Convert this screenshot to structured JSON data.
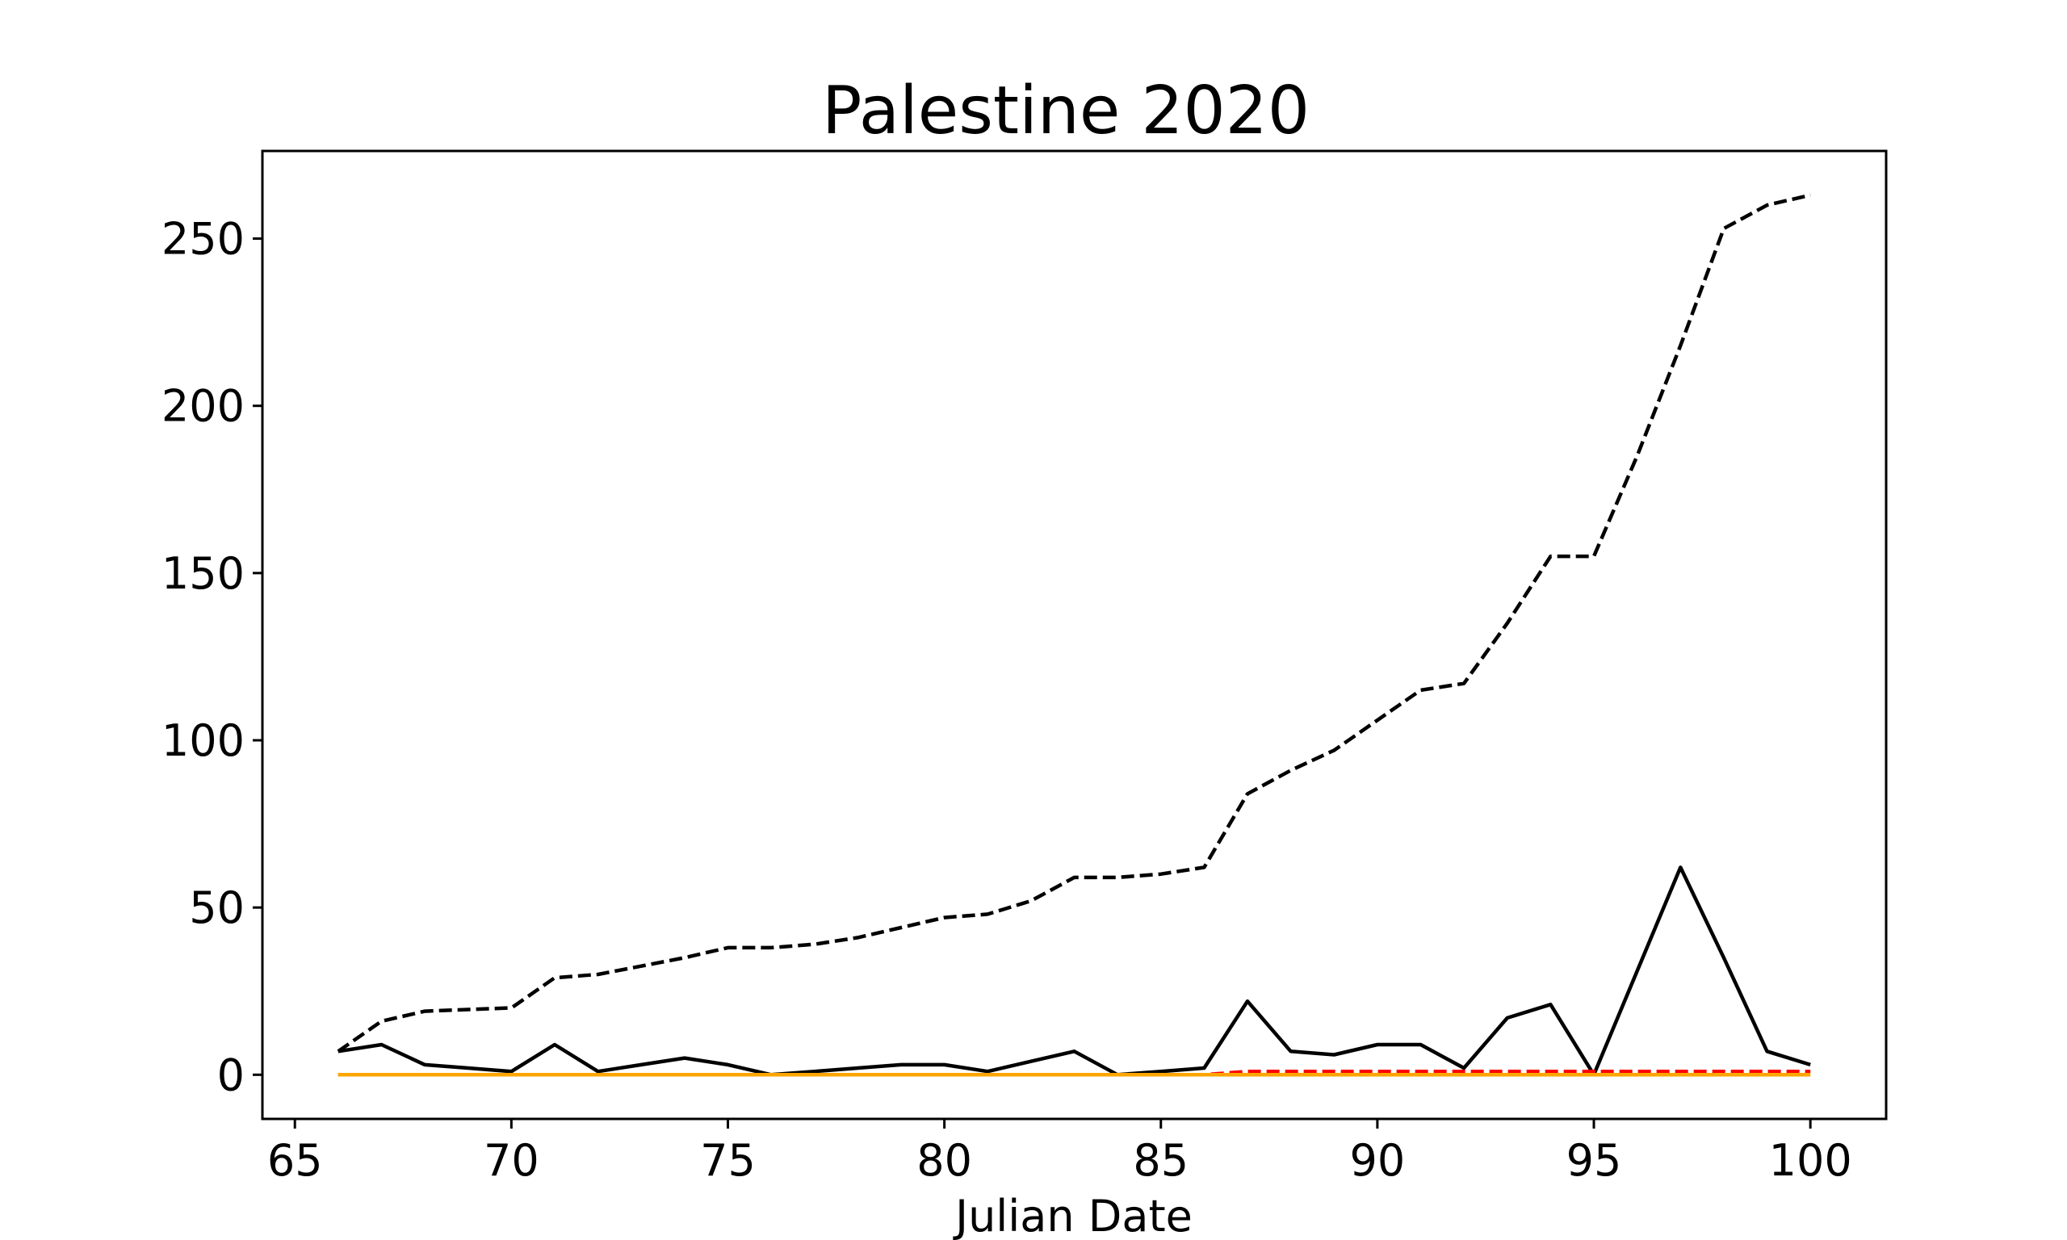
{
  "chart_data": {
    "type": "line",
    "title": "Palestine 2020",
    "xlabel": "Julian Date",
    "ylabel": "",
    "xlim": [
      64.25,
      101.75
    ],
    "ylim": [
      -13.2,
      276.2
    ],
    "xticks": [
      65,
      70,
      75,
      80,
      85,
      90,
      95,
      100
    ],
    "yticks": [
      0,
      50,
      100,
      150,
      200,
      250
    ],
    "grid": false,
    "legend": "none",
    "x": [
      66,
      67,
      68,
      69,
      70,
      71,
      72,
      73,
      74,
      75,
      76,
      77,
      78,
      79,
      80,
      81,
      82,
      83,
      84,
      85,
      86,
      87,
      88,
      89,
      90,
      91,
      92,
      93,
      94,
      95,
      96,
      97,
      98,
      99,
      100
    ],
    "series": [
      {
        "color": "#000000",
        "dash": true,
        "values": [
          7,
          16,
          19,
          19.5,
          20,
          29,
          30,
          32.5,
          35,
          38,
          38,
          39,
          41,
          44,
          47,
          48,
          52,
          59,
          59,
          60,
          62,
          84,
          91,
          97,
          106,
          115,
          117,
          135,
          155,
          155,
          185,
          218,
          253,
          260,
          263
        ]
      },
      {
        "color": "#000000",
        "dash": false,
        "values": [
          7,
          9,
          3,
          2,
          1,
          9,
          1,
          3,
          5,
          3,
          0,
          1,
          2,
          3,
          3,
          1,
          4,
          7,
          0,
          1,
          2,
          22,
          7,
          6,
          9,
          9,
          2,
          17,
          21,
          0,
          31,
          62,
          35,
          7,
          3
        ]
      },
      {
        "color": "#ff0000",
        "dash": true,
        "values": [
          0,
          0,
          0,
          0,
          0,
          0,
          0,
          0,
          0,
          0,
          0,
          0,
          0,
          0,
          0,
          0,
          0,
          0,
          0,
          0,
          0,
          1,
          1,
          1,
          1,
          1,
          1,
          1,
          1,
          1,
          1,
          1,
          1,
          1,
          1
        ]
      },
      {
        "color": "#ffa500",
        "dash": false,
        "values": [
          0,
          0,
          0,
          0,
          0,
          0,
          0,
          0,
          0,
          0,
          0,
          0,
          0,
          0,
          0,
          0,
          0,
          0,
          0,
          0,
          0,
          0,
          0,
          0,
          0,
          0,
          0,
          0,
          0,
          0,
          0,
          0,
          0,
          0,
          0
        ]
      }
    ]
  }
}
